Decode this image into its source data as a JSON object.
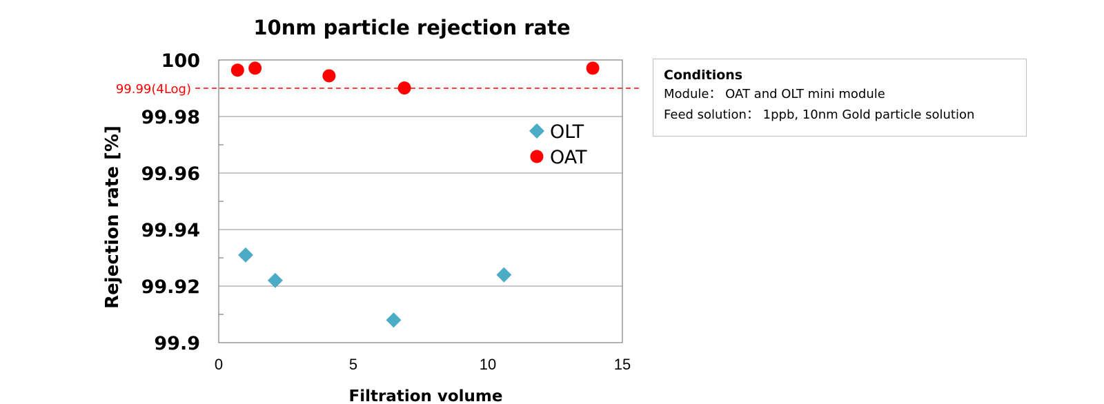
{
  "chart_data": {
    "type": "scatter",
    "title": "10nm particle rejection rate",
    "xlabel": "Filtration volume",
    "ylabel": "Rejection rate [%]",
    "xlim": [
      0,
      15
    ],
    "ylim": [
      99.9,
      100
    ],
    "xticks": [
      0,
      5,
      10,
      15
    ],
    "yticks": [
      99.9,
      99.92,
      99.94,
      99.96,
      99.98,
      100
    ],
    "ytick_labels": [
      "99.9",
      "99.92",
      "99.94",
      "99.96",
      "99.98",
      "100"
    ],
    "grid": true,
    "legend_position": "upper-right inside plot",
    "series": [
      {
        "name": "OLT",
        "marker": "diamond",
        "color": "#4BACC6",
        "points": [
          [
            1.0,
            99.931
          ],
          [
            2.1,
            99.922
          ],
          [
            6.5,
            99.908
          ],
          [
            10.6,
            99.924
          ]
        ]
      },
      {
        "name": "OAT",
        "marker": "circle",
        "color": "#FF0000",
        "points": [
          [
            0.7,
            99.9964
          ],
          [
            1.35,
            99.9971
          ],
          [
            4.1,
            99.9944
          ],
          [
            6.9,
            99.9901
          ],
          [
            13.9,
            99.9971
          ]
        ]
      }
    ],
    "reference_line": {
      "y": 99.99,
      "label": "99.99(4Log)",
      "color": "#FF0000",
      "style": "dashed"
    }
  },
  "conditions": {
    "title": "Conditions",
    "module": "Module： OAT and OLT mini module",
    "feed": "Feed solution： 1ppb, 10nm Gold particle solution"
  }
}
